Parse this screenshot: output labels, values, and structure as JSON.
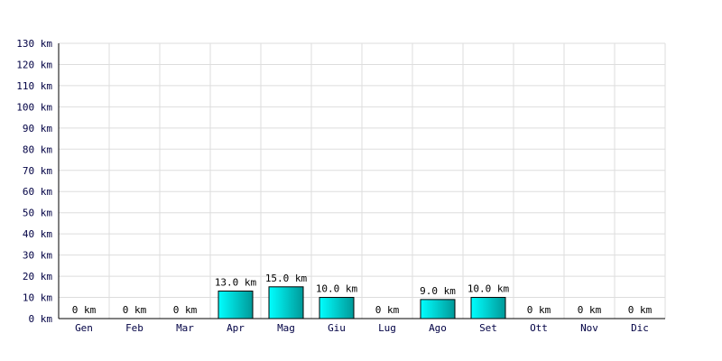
{
  "chart_data": {
    "type": "bar",
    "title": "",
    "xlabel": "",
    "ylabel": "",
    "categories": [
      "Gen",
      "Feb",
      "Mar",
      "Apr",
      "Mag",
      "Giu",
      "Lug",
      "Ago",
      "Set",
      "Ott",
      "Nov",
      "Dic"
    ],
    "values": [
      0,
      0,
      0,
      13.0,
      15.0,
      10.0,
      0,
      9.0,
      10.0,
      0,
      0,
      0
    ],
    "value_labels": [
      "0 km",
      "0 km",
      "0 km",
      "13.0 km",
      "15.0 km",
      "10.0 km",
      "0 km",
      "9.0 km",
      "10.0 km",
      "0 km",
      "0 km",
      "0 km"
    ],
    "ylim": [
      0,
      130
    ],
    "y_ticks": [
      0,
      10,
      20,
      30,
      40,
      50,
      60,
      70,
      80,
      90,
      100,
      110,
      120,
      130
    ],
    "y_tick_labels": [
      "0 km",
      "10 km",
      "20 km",
      "30 km",
      "40 km",
      "50 km",
      "60 km",
      "70 km",
      "80 km",
      "90 km",
      "100 km",
      "110 km",
      "120 km",
      "130 km"
    ],
    "grid": true,
    "colors": {
      "bar_light": "#00ffff",
      "bar_dark": "#009999",
      "bar_border": "#000000",
      "grid": "#dddddd",
      "axis": "#000000",
      "tick_text": "#000044"
    }
  }
}
